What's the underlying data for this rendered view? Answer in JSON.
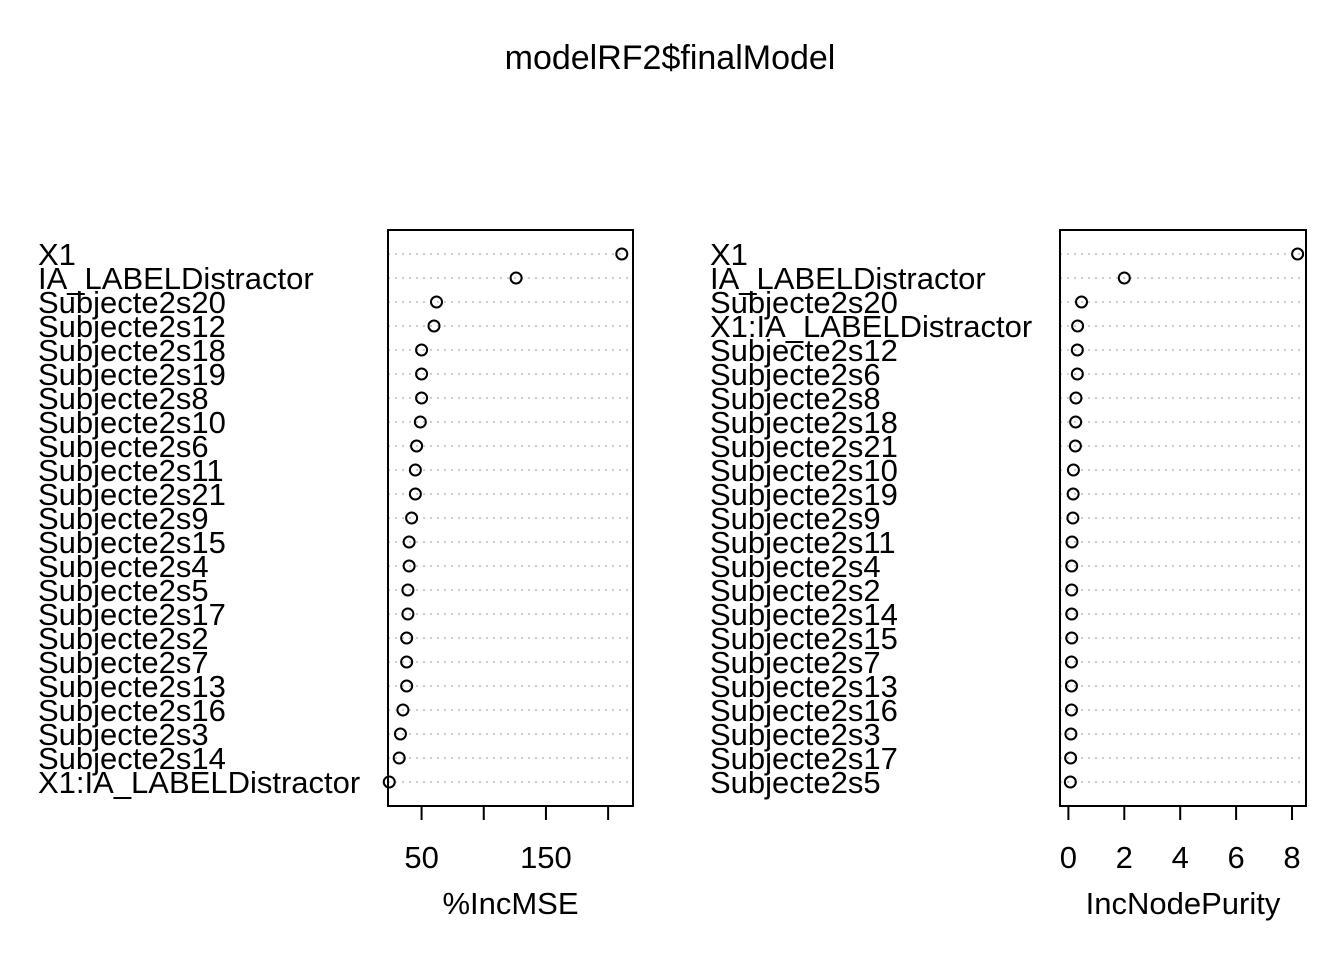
{
  "title": "modelRF2$finalModel",
  "chart_data": [
    {
      "type": "scatter",
      "subtype": "dotchart",
      "xlabel": "%IncMSE",
      "ylabel": "",
      "xlim": [
        23,
        220
      ],
      "xticks": [
        50,
        100,
        150,
        200
      ],
      "xtick_labels": [
        "50",
        "",
        "150",
        ""
      ],
      "grid": true,
      "categories": [
        "X1",
        "IA_LABELDistractor",
        "Subjecte2s20",
        "Subjecte2s12",
        "Subjecte2s18",
        "Subjecte2s19",
        "Subjecte2s8",
        "Subjecte2s10",
        "Subjecte2s6",
        "Subjecte2s11",
        "Subjecte2s21",
        "Subjecte2s9",
        "Subjecte2s15",
        "Subjecte2s4",
        "Subjecte2s5",
        "Subjecte2s17",
        "Subjecte2s2",
        "Subjecte2s7",
        "Subjecte2s13",
        "Subjecte2s16",
        "Subjecte2s3",
        "Subjecte2s14",
        "X1:IA_LABELDistractor"
      ],
      "values": [
        211,
        126,
        62,
        60,
        50,
        50,
        50,
        49,
        46,
        45,
        45,
        42,
        40,
        40,
        39,
        39,
        38,
        38,
        38,
        35,
        33,
        32,
        24
      ]
    },
    {
      "type": "scatter",
      "subtype": "dotchart",
      "xlabel": "IncNodePurity",
      "ylabel": "",
      "xlim": [
        -0.3,
        8.5
      ],
      "xticks": [
        0,
        2,
        4,
        6,
        8
      ],
      "xtick_labels": [
        "0",
        "2",
        "4",
        "6",
        "8"
      ],
      "grid": true,
      "categories": [
        "X1",
        "IA_LABELDistractor",
        "Subjecte2s20",
        "X1:IA_LABELDistractor",
        "Subjecte2s12",
        "Subjecte2s6",
        "Subjecte2s8",
        "Subjecte2s18",
        "Subjecte2s21",
        "Subjecte2s10",
        "Subjecte2s19",
        "Subjecte2s9",
        "Subjecte2s11",
        "Subjecte2s4",
        "Subjecte2s2",
        "Subjecte2s14",
        "Subjecte2s15",
        "Subjecte2s7",
        "Subjecte2s13",
        "Subjecte2s16",
        "Subjecte2s3",
        "Subjecte2s17",
        "Subjecte2s5"
      ],
      "values": [
        8.2,
        2.0,
        0.47,
        0.33,
        0.32,
        0.32,
        0.27,
        0.26,
        0.25,
        0.18,
        0.17,
        0.16,
        0.13,
        0.12,
        0.12,
        0.12,
        0.12,
        0.11,
        0.11,
        0.11,
        0.09,
        0.08,
        0.07
      ]
    }
  ]
}
